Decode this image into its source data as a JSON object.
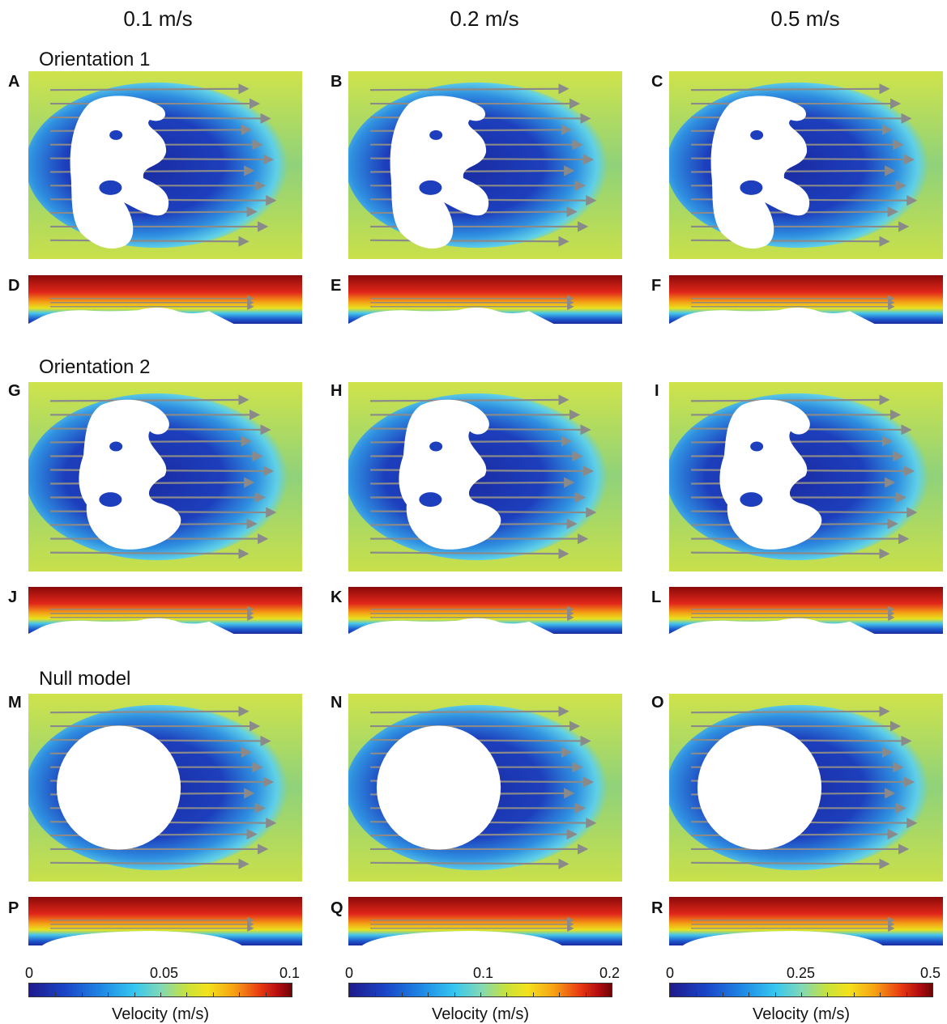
{
  "columns": [
    "0.1 m/s",
    "0.2 m/s",
    "0.5 m/s"
  ],
  "sections": [
    "Orientation 1",
    "Orientation 2",
    "Null model"
  ],
  "panel_labels": [
    "A",
    "B",
    "C",
    "D",
    "E",
    "F",
    "G",
    "H",
    "I",
    "J",
    "K",
    "L",
    "M",
    "N",
    "O",
    "P",
    "Q",
    "R"
  ],
  "colorbars": [
    {
      "ticks": [
        "0",
        "0.05",
        "0.1"
      ],
      "title": "Velocity (m/s)"
    },
    {
      "ticks": [
        "0",
        "0.1",
        "0.2"
      ],
      "title": "Velocity (m/s)"
    },
    {
      "ticks": [
        "0",
        "0.25",
        "0.5"
      ],
      "title": "Velocity (m/s)"
    }
  ],
  "colors": {
    "arrow": "#8a8a8a",
    "low": "#1e2aa8",
    "mid": "#bfe03c",
    "high": "#b30c10"
  }
}
